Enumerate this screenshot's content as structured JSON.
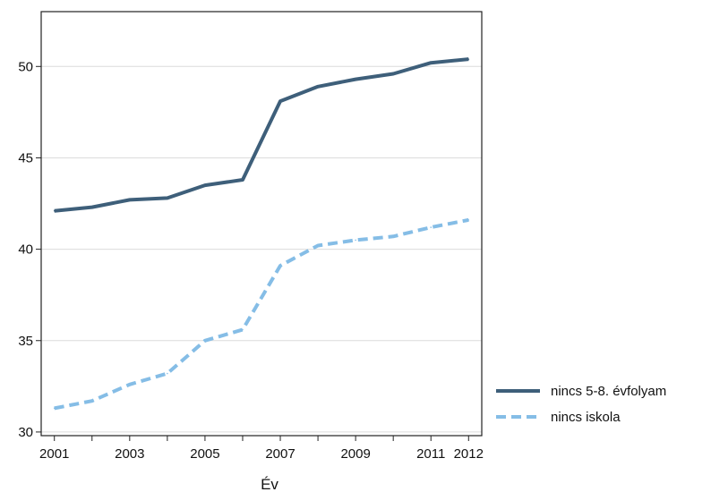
{
  "chart_data": {
    "type": "line",
    "title": "",
    "xlabel": "Év",
    "ylabel": "",
    "x": [
      2001,
      2002,
      2003,
      2004,
      2005,
      2006,
      2007,
      2008,
      2009,
      2010,
      2011,
      2012
    ],
    "xticks": [
      "2001",
      "2003",
      "2005",
      "2007",
      "2009",
      "2011",
      "2012"
    ],
    "yticks": [
      "30",
      "35",
      "40",
      "45",
      "50"
    ],
    "xlim": [
      2001,
      2012
    ],
    "ylim": [
      29.8,
      53
    ],
    "grid": "horizontal",
    "legend_position": "right",
    "series": [
      {
        "name": "nincs 5-8. évfolyam",
        "color": "#3e5f7a",
        "style": "solid",
        "values": [
          42.1,
          42.3,
          42.7,
          42.8,
          43.5,
          43.8,
          48.1,
          48.9,
          49.3,
          49.6,
          50.2,
          50.4
        ]
      },
      {
        "name": "nincs iskola",
        "color": "#85bde6",
        "style": "dashed",
        "values": [
          31.3,
          31.7,
          32.6,
          33.2,
          35.0,
          35.6,
          39.1,
          40.2,
          40.5,
          40.7,
          41.2,
          41.6
        ]
      }
    ]
  }
}
